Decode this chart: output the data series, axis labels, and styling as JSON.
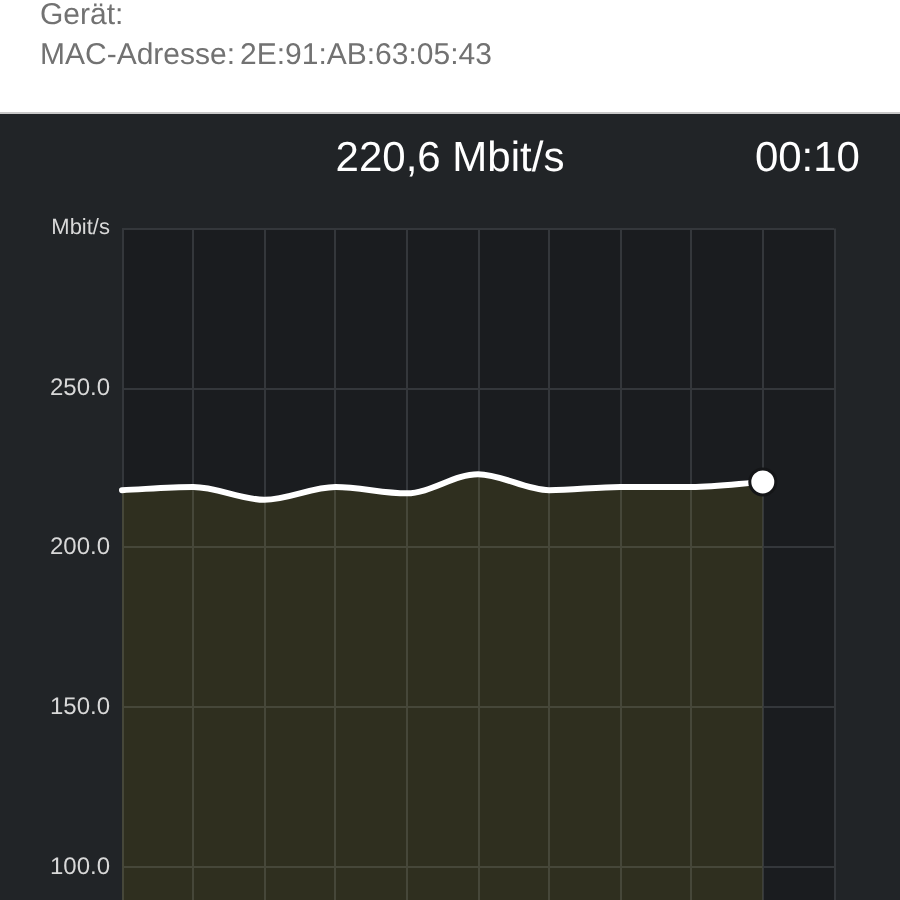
{
  "chart_data": {
    "type": "area",
    "title": "220,6 Mbit/s",
    "ylabel": "Mbit/s",
    "annotations": [
      "Gerät:",
      "MAC-Adresse:",
      "2E:91:AB:63:05:43",
      "00:10"
    ],
    "categories": [
      null,
      null,
      null,
      null,
      null,
      null,
      null,
      null,
      null,
      null,
      null
    ],
    "series": [
      {
        "color": "#ffffff",
        "values": [
          218,
          219,
          215,
          219,
          217,
          223,
          218,
          219,
          219,
          220.6,
          null
        ]
      },
      {
        "type": "scatter",
        "marker": "circle",
        "color": "#ffffff",
        "values": [
          null,
          null,
          null,
          null,
          null,
          null,
          null,
          null,
          null,
          220.6,
          null
        ]
      }
    ],
    "ylim": [
      89,
      300
    ],
    "yticks": [
      {
        "value": 100,
        "label": "100.0"
      },
      {
        "value": 150,
        "label": "150.0"
      },
      {
        "value": 200,
        "label": "200.0"
      },
      {
        "value": 250,
        "label": "250.0"
      },
      {
        "value": 300,
        "label": null
      }
    ],
    "grid": true,
    "tick_labels": "y"
  }
}
